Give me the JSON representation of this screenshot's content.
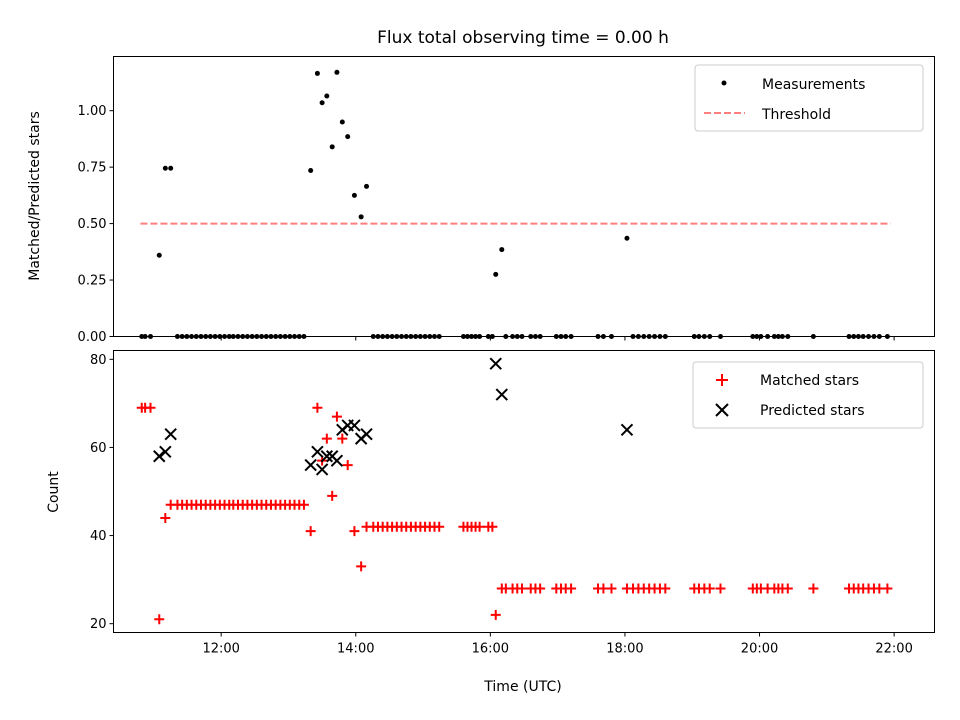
{
  "chart_data": [
    {
      "type": "scatter",
      "title": "Flux total observing time = 0.00 h",
      "xlabel": "",
      "ylabel": "Matched/Predicted stars",
      "xlim": [
        10.4,
        22.6
      ],
      "ylim": [
        0,
        1.24
      ],
      "yticks": [
        0,
        0.25,
        0.5,
        0.75,
        1.0
      ],
      "ytick_labels": [
        "0.00",
        "0.25",
        "0.50",
        "0.75",
        "1.00"
      ],
      "legend_position": "top-right",
      "series": [
        {
          "name": "Measurements",
          "kind": "scatter",
          "marker": "dot",
          "color": "#000000",
          "points": [
            [
              10.82,
              0
            ],
            [
              10.87,
              0
            ],
            [
              10.95,
              0
            ],
            [
              11.08,
              0.36
            ],
            [
              11.17,
              0.745
            ],
            [
              11.25,
              0.745
            ],
            [
              11.35,
              0
            ],
            [
              11.42,
              0
            ],
            [
              11.49,
              0
            ],
            [
              11.56,
              0
            ],
            [
              11.63,
              0
            ],
            [
              11.7,
              0
            ],
            [
              11.77,
              0
            ],
            [
              11.84,
              0
            ],
            [
              11.91,
              0
            ],
            [
              11.98,
              0
            ],
            [
              12.05,
              0
            ],
            [
              12.12,
              0
            ],
            [
              12.18,
              0
            ],
            [
              12.25,
              0
            ],
            [
              12.32,
              0
            ],
            [
              12.39,
              0
            ],
            [
              12.46,
              0
            ],
            [
              12.53,
              0
            ],
            [
              12.6,
              0
            ],
            [
              12.67,
              0
            ],
            [
              12.74,
              0
            ],
            [
              12.81,
              0
            ],
            [
              12.88,
              0
            ],
            [
              12.95,
              0
            ],
            [
              13.02,
              0
            ],
            [
              13.09,
              0
            ],
            [
              13.16,
              0
            ],
            [
              13.23,
              0
            ],
            [
              13.33,
              0.735
            ],
            [
              13.43,
              1.165
            ],
            [
              13.5,
              1.035
            ],
            [
              13.57,
              1.065
            ],
            [
              13.65,
              0.84
            ],
            [
              13.72,
              1.17
            ],
            [
              13.8,
              0.95
            ],
            [
              13.88,
              0.885
            ],
            [
              13.98,
              0.625
            ],
            [
              14.08,
              0.53
            ],
            [
              14.16,
              0.665
            ],
            [
              14.26,
              0
            ],
            [
              14.33,
              0
            ],
            [
              14.4,
              0
            ],
            [
              14.47,
              0
            ],
            [
              14.54,
              0
            ],
            [
              14.61,
              0
            ],
            [
              14.68,
              0
            ],
            [
              14.75,
              0
            ],
            [
              14.82,
              0
            ],
            [
              14.89,
              0
            ],
            [
              14.96,
              0
            ],
            [
              15.03,
              0
            ],
            [
              15.1,
              0
            ],
            [
              15.17,
              0
            ],
            [
              15.24,
              0
            ],
            [
              15.6,
              0
            ],
            [
              15.66,
              0
            ],
            [
              15.72,
              0
            ],
            [
              15.78,
              0
            ],
            [
              15.84,
              0
            ],
            [
              15.97,
              0
            ],
            [
              16.03,
              0
            ],
            [
              16.08,
              0.275
            ],
            [
              16.17,
              0.385
            ],
            [
              16.23,
              0
            ],
            [
              16.33,
              0
            ],
            [
              16.4,
              0
            ],
            [
              16.47,
              0
            ],
            [
              16.6,
              0
            ],
            [
              16.67,
              0
            ],
            [
              16.74,
              0
            ],
            [
              16.98,
              0
            ],
            [
              17.05,
              0
            ],
            [
              17.12,
              0
            ],
            [
              17.2,
              0
            ],
            [
              17.6,
              0
            ],
            [
              17.68,
              0
            ],
            [
              17.8,
              0
            ],
            [
              18.03,
              0.435
            ],
            [
              18.12,
              0
            ],
            [
              18.2,
              0
            ],
            [
              18.28,
              0
            ],
            [
              18.36,
              0
            ],
            [
              18.44,
              0
            ],
            [
              18.52,
              0
            ],
            [
              18.6,
              0
            ],
            [
              19.03,
              0
            ],
            [
              19.1,
              0
            ],
            [
              19.18,
              0
            ],
            [
              19.26,
              0
            ],
            [
              19.42,
              0
            ],
            [
              19.9,
              0
            ],
            [
              19.96,
              0
            ],
            [
              20.02,
              0
            ],
            [
              20.12,
              0
            ],
            [
              20.22,
              0
            ],
            [
              20.28,
              0
            ],
            [
              20.34,
              0
            ],
            [
              20.42,
              0
            ],
            [
              20.8,
              0
            ],
            [
              21.33,
              0
            ],
            [
              21.4,
              0
            ],
            [
              21.47,
              0
            ],
            [
              21.54,
              0
            ],
            [
              21.62,
              0
            ],
            [
              21.7,
              0
            ],
            [
              21.78,
              0
            ],
            [
              21.9,
              0
            ]
          ]
        },
        {
          "name": "Threshold",
          "kind": "line",
          "style": "dashed",
          "color": "#ff7f7f",
          "points": [
            [
              10.8,
              0.5
            ],
            [
              21.95,
              0.5
            ]
          ]
        }
      ]
    },
    {
      "type": "scatter",
      "title": "",
      "xlabel": "Time (UTC)",
      "ylabel": "Count",
      "xlim": [
        10.4,
        22.6
      ],
      "ylim": [
        18,
        82
      ],
      "yticks": [
        20,
        40,
        60,
        80
      ],
      "ytick_labels": [
        "20",
        "40",
        "60",
        "80"
      ],
      "xticks": [
        12,
        14,
        16,
        18,
        20,
        22
      ],
      "xtick_labels": [
        "12:00",
        "14:00",
        "16:00",
        "18:00",
        "20:00",
        "22:00"
      ],
      "legend_position": "top-right",
      "series": [
        {
          "name": "Matched stars",
          "kind": "scatter",
          "marker": "plus",
          "color": "#ff0000",
          "points": [
            [
              10.82,
              69
            ],
            [
              10.87,
              69
            ],
            [
              10.95,
              69
            ],
            [
              11.08,
              21
            ],
            [
              11.17,
              44
            ],
            [
              11.25,
              47
            ],
            [
              11.35,
              47
            ],
            [
              11.42,
              47
            ],
            [
              11.49,
              47
            ],
            [
              11.56,
              47
            ],
            [
              11.63,
              47
            ],
            [
              11.7,
              47
            ],
            [
              11.77,
              47
            ],
            [
              11.84,
              47
            ],
            [
              11.91,
              47
            ],
            [
              11.98,
              47
            ],
            [
              12.05,
              47
            ],
            [
              12.12,
              47
            ],
            [
              12.18,
              47
            ],
            [
              12.25,
              47
            ],
            [
              12.32,
              47
            ],
            [
              12.39,
              47
            ],
            [
              12.46,
              47
            ],
            [
              12.53,
              47
            ],
            [
              12.6,
              47
            ],
            [
              12.67,
              47
            ],
            [
              12.74,
              47
            ],
            [
              12.81,
              47
            ],
            [
              12.88,
              47
            ],
            [
              12.95,
              47
            ],
            [
              13.02,
              47
            ],
            [
              13.09,
              47
            ],
            [
              13.16,
              47
            ],
            [
              13.23,
              47
            ],
            [
              13.33,
              41
            ],
            [
              13.43,
              69
            ],
            [
              13.5,
              57
            ],
            [
              13.57,
              62
            ],
            [
              13.65,
              49
            ],
            [
              13.72,
              67
            ],
            [
              13.8,
              62
            ],
            [
              13.88,
              56
            ],
            [
              13.98,
              41
            ],
            [
              14.08,
              33
            ],
            [
              14.16,
              42
            ],
            [
              14.26,
              42
            ],
            [
              14.33,
              42
            ],
            [
              14.4,
              42
            ],
            [
              14.47,
              42
            ],
            [
              14.54,
              42
            ],
            [
              14.61,
              42
            ],
            [
              14.68,
              42
            ],
            [
              14.75,
              42
            ],
            [
              14.82,
              42
            ],
            [
              14.89,
              42
            ],
            [
              14.96,
              42
            ],
            [
              15.03,
              42
            ],
            [
              15.1,
              42
            ],
            [
              15.17,
              42
            ],
            [
              15.24,
              42
            ],
            [
              15.6,
              42
            ],
            [
              15.66,
              42
            ],
            [
              15.72,
              42
            ],
            [
              15.78,
              42
            ],
            [
              15.84,
              42
            ],
            [
              15.97,
              42
            ],
            [
              16.03,
              42
            ],
            [
              16.08,
              22
            ],
            [
              16.17,
              28
            ],
            [
              16.23,
              28
            ],
            [
              16.33,
              28
            ],
            [
              16.4,
              28
            ],
            [
              16.47,
              28
            ],
            [
              16.6,
              28
            ],
            [
              16.67,
              28
            ],
            [
              16.74,
              28
            ],
            [
              16.98,
              28
            ],
            [
              17.05,
              28
            ],
            [
              17.12,
              28
            ],
            [
              17.2,
              28
            ],
            [
              17.6,
              28
            ],
            [
              17.68,
              28
            ],
            [
              17.8,
              28
            ],
            [
              18.03,
              28
            ],
            [
              18.12,
              28
            ],
            [
              18.2,
              28
            ],
            [
              18.28,
              28
            ],
            [
              18.36,
              28
            ],
            [
              18.44,
              28
            ],
            [
              18.52,
              28
            ],
            [
              18.6,
              28
            ],
            [
              19.03,
              28
            ],
            [
              19.1,
              28
            ],
            [
              19.18,
              28
            ],
            [
              19.26,
              28
            ],
            [
              19.42,
              28
            ],
            [
              19.9,
              28
            ],
            [
              19.96,
              28
            ],
            [
              20.02,
              28
            ],
            [
              20.12,
              28
            ],
            [
              20.22,
              28
            ],
            [
              20.28,
              28
            ],
            [
              20.34,
              28
            ],
            [
              20.42,
              28
            ],
            [
              20.8,
              28
            ],
            [
              21.33,
              28
            ],
            [
              21.4,
              28
            ],
            [
              21.47,
              28
            ],
            [
              21.54,
              28
            ],
            [
              21.62,
              28
            ],
            [
              21.7,
              28
            ],
            [
              21.78,
              28
            ],
            [
              21.9,
              28
            ]
          ]
        },
        {
          "name": "Predicted stars",
          "kind": "scatter",
          "marker": "x",
          "color": "#000000",
          "points": [
            [
              11.08,
              58
            ],
            [
              11.17,
              59
            ],
            [
              11.25,
              63
            ],
            [
              13.33,
              56
            ],
            [
              13.43,
              59
            ],
            [
              13.5,
              55
            ],
            [
              13.57,
              58
            ],
            [
              13.65,
              58
            ],
            [
              13.72,
              57
            ],
            [
              13.8,
              64
            ],
            [
              13.88,
              65
            ],
            [
              13.98,
              65
            ],
            [
              14.08,
              62
            ],
            [
              14.16,
              63
            ],
            [
              16.08,
              79
            ],
            [
              16.17,
              72
            ],
            [
              18.03,
              64
            ]
          ]
        }
      ]
    }
  ]
}
